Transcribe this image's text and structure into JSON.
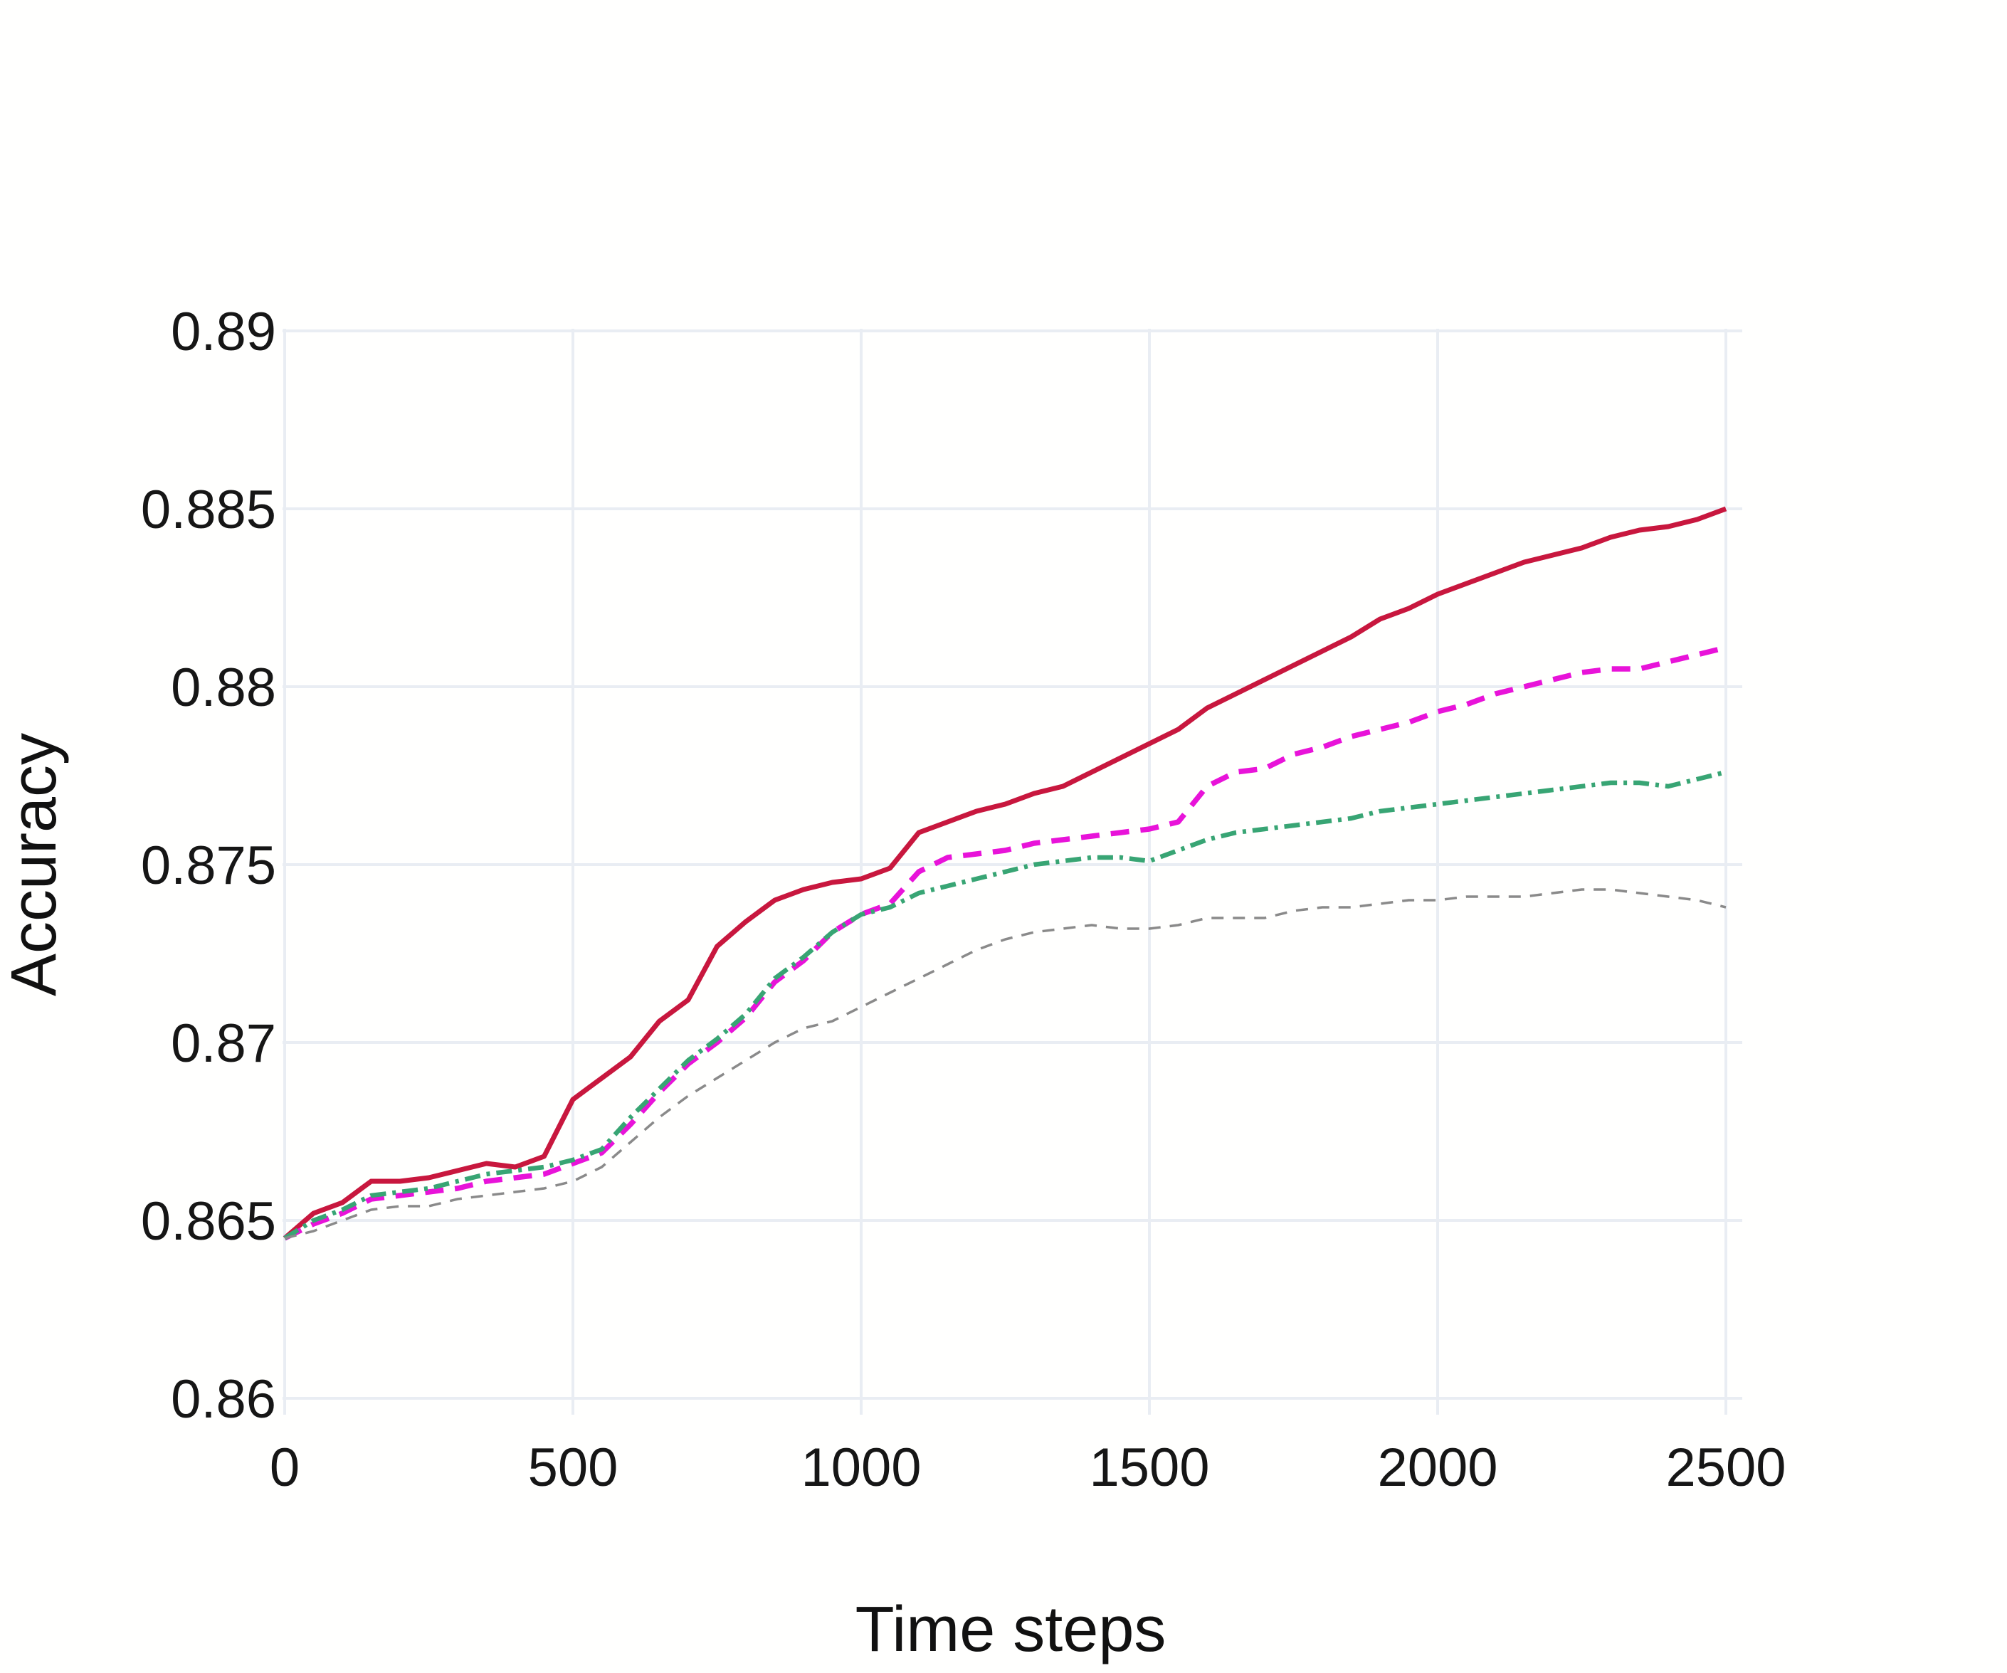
{
  "figure": {
    "ylabel": "Accuracy",
    "xlabel": "Time steps",
    "background_color": "#ffffff",
    "grid_color": "#e9edf3",
    "text_color": "#161616"
  },
  "chart_data": {
    "type": "line",
    "title": "",
    "xlabel": "Time steps",
    "ylabel": "Accuracy",
    "xlim": [
      0,
      2500
    ],
    "ylim": [
      0.86,
      0.89
    ],
    "grid": true,
    "legend": "none",
    "x_ticks": [
      0,
      500,
      1000,
      1500,
      2000,
      2500
    ],
    "x_tick_labels": [
      "0",
      "500",
      "1000",
      "1500",
      "2000",
      "2500"
    ],
    "y_ticks": [
      0.86,
      0.865,
      0.87,
      0.875,
      0.88,
      0.885,
      0.89
    ],
    "y_tick_labels": [
      "0.86",
      "0.865",
      "0.87",
      "0.875",
      "0.88",
      "0.885",
      "0.89"
    ],
    "x": [
      0,
      50,
      100,
      150,
      200,
      250,
      300,
      350,
      400,
      450,
      500,
      550,
      600,
      650,
      700,
      750,
      800,
      850,
      900,
      950,
      1000,
      1050,
      1100,
      1150,
      1200,
      1250,
      1300,
      1350,
      1400,
      1450,
      1500,
      1550,
      1600,
      1650,
      1700,
      1750,
      1800,
      1850,
      1900,
      1950,
      2000,
      2050,
      2100,
      2150,
      2200,
      2250,
      2300,
      2350,
      2400,
      2450,
      2500
    ],
    "series": [
      {
        "name": "red-solid",
        "color": "#c8173e",
        "line_style": "solid",
        "values": [
          0.8645,
          0.8652,
          0.8655,
          0.8661,
          0.8661,
          0.8662,
          0.8664,
          0.8666,
          0.8665,
          0.8668,
          0.8684,
          0.869,
          0.8696,
          0.8706,
          0.8712,
          0.8727,
          0.8734,
          0.874,
          0.8743,
          0.8745,
          0.8746,
          0.8749,
          0.8759,
          0.8762,
          0.8765,
          0.8767,
          0.877,
          0.8772,
          0.8776,
          0.878,
          0.8784,
          0.8788,
          0.8794,
          0.8798,
          0.8802,
          0.8806,
          0.881,
          0.8814,
          0.8819,
          0.8822,
          0.8826,
          0.8829,
          0.8832,
          0.8835,
          0.8837,
          0.8839,
          0.8842,
          0.8844,
          0.8845,
          0.8847,
          0.885
        ]
      },
      {
        "name": "magenta-dashed",
        "color": "#e813d9",
        "line_style": "dashed",
        "values": [
          0.8645,
          0.8649,
          0.8652,
          0.8656,
          0.8657,
          0.8658,
          0.8659,
          0.8661,
          0.8662,
          0.8663,
          0.8666,
          0.8669,
          0.8677,
          0.8686,
          0.8694,
          0.87,
          0.8707,
          0.8717,
          0.8723,
          0.8731,
          0.8736,
          0.8739,
          0.8748,
          0.8752,
          0.8753,
          0.8754,
          0.8756,
          0.8757,
          0.8758,
          0.8759,
          0.876,
          0.8762,
          0.8772,
          0.8776,
          0.8777,
          0.8781,
          0.8783,
          0.8786,
          0.8788,
          0.879,
          0.8793,
          0.8795,
          0.8798,
          0.88,
          0.8802,
          0.8804,
          0.8805,
          0.8805,
          0.8807,
          0.8809,
          0.8811
        ]
      },
      {
        "name": "green-dashdot",
        "color": "#38a574",
        "line_style": "dashdot",
        "values": [
          0.8645,
          0.865,
          0.8653,
          0.8657,
          0.8658,
          0.8659,
          0.8661,
          0.8663,
          0.8664,
          0.8665,
          0.8667,
          0.867,
          0.8679,
          0.8687,
          0.8695,
          0.8701,
          0.8708,
          0.8718,
          0.8724,
          0.8731,
          0.8736,
          0.8738,
          0.8742,
          0.8744,
          0.8746,
          0.8748,
          0.875,
          0.8751,
          0.8752,
          0.8752,
          0.8751,
          0.8754,
          0.8757,
          0.8759,
          0.876,
          0.8761,
          0.8762,
          0.8763,
          0.8765,
          0.8766,
          0.8767,
          0.8768,
          0.8769,
          0.877,
          0.8771,
          0.8772,
          0.8773,
          0.8773,
          0.8772,
          0.8774,
          0.8776
        ]
      },
      {
        "name": "gray-dashed",
        "color": "#8a8a8a",
        "line_style": "dashed-thin",
        "values": [
          0.8645,
          0.8647,
          0.865,
          0.8653,
          0.8654,
          0.8654,
          0.8656,
          0.8657,
          0.8658,
          0.8659,
          0.8661,
          0.8665,
          0.8672,
          0.8679,
          0.8685,
          0.869,
          0.8695,
          0.87,
          0.8704,
          0.8706,
          0.871,
          0.8714,
          0.8718,
          0.8722,
          0.8726,
          0.8729,
          0.8731,
          0.8732,
          0.8733,
          0.8732,
          0.8732,
          0.8733,
          0.8735,
          0.8735,
          0.8735,
          0.8737,
          0.8738,
          0.8738,
          0.8739,
          0.874,
          0.874,
          0.8741,
          0.8741,
          0.8741,
          0.8742,
          0.8743,
          0.8743,
          0.8742,
          0.8741,
          0.874,
          0.8738
        ]
      }
    ]
  }
}
